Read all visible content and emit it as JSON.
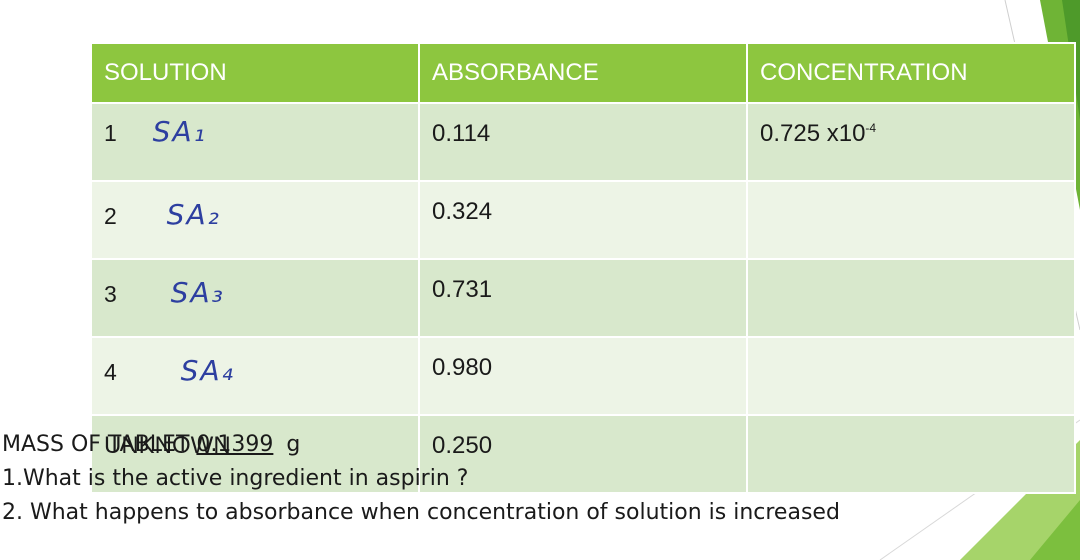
{
  "table": {
    "headers": [
      "SOLUTION",
      "ABSORBANCE",
      "CONCENTRATION"
    ],
    "rows": [
      {
        "num": "1",
        "handwritten": "SA₁",
        "absorbance": "0.114",
        "concentration": "0.725 x10",
        "concentration_exp": "-4"
      },
      {
        "num": "2",
        "handwritten": "SA₂",
        "absorbance": "0.324",
        "concentration": "",
        "concentration_exp": ""
      },
      {
        "num": "3",
        "handwritten": "SA₃",
        "absorbance": "0.731",
        "concentration": "",
        "concentration_exp": ""
      },
      {
        "num": "4",
        "handwritten": "SA₄",
        "absorbance": "0.980",
        "concentration": "",
        "concentration_exp": ""
      },
      {
        "label": "UNKNOWN",
        "absorbance": "0.250",
        "concentration": "",
        "concentration_exp": ""
      }
    ]
  },
  "notes": {
    "mass_label": "MASS OF TABLET",
    "mass_value": "0.1399",
    "mass_unit": "g",
    "q1": "1.What is the active ingredient in aspirin ?",
    "q2": "2. What happens to absorbance when concentration of solution is  increased"
  },
  "colors": {
    "header": "#8dc63f",
    "row_odd": "#d8e8cc",
    "row_even": "#edf4e6",
    "handwriting": "#2d3fa0"
  }
}
